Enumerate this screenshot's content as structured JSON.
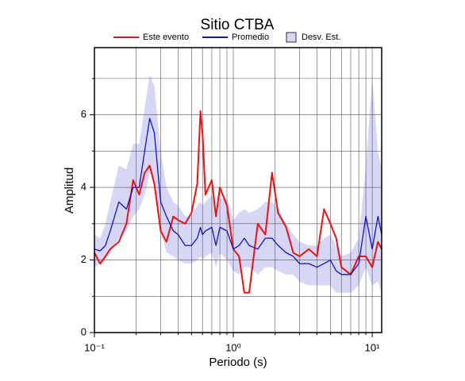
{
  "chart_data": {
    "type": "line",
    "title": "Sitio CTBA",
    "x_label": "Periodo (s)",
    "y_label": "Amplitud",
    "x_scale": "log",
    "grid": true,
    "xlim": [
      0.1,
      11.7
    ],
    "ylim": [
      0,
      7.85
    ],
    "xticks": [
      {
        "value": 0.1,
        "label": "10⁻¹"
      },
      {
        "value": 1,
        "label": "10⁰"
      },
      {
        "value": 10,
        "label": "10¹"
      }
    ],
    "x_minor_ticks": [
      0.2,
      0.3,
      0.4,
      0.5,
      0.6,
      0.7,
      0.8,
      0.9,
      2,
      3,
      4,
      5,
      6,
      7,
      8,
      9
    ],
    "yticks": [
      0,
      2,
      4,
      6
    ],
    "y_minor_ticks": [
      1,
      3,
      5,
      7
    ],
    "x": [
      0.1,
      0.11,
      0.12,
      0.13,
      0.15,
      0.17,
      0.19,
      0.21,
      0.23,
      0.25,
      0.27,
      0.3,
      0.33,
      0.37,
      0.4,
      0.45,
      0.5,
      0.55,
      0.58,
      0.6,
      0.63,
      0.7,
      0.75,
      0.8,
      0.9,
      1.0,
      1.1,
      1.2,
      1.3,
      1.5,
      1.7,
      1.9,
      2.1,
      2.4,
      2.7,
      3.0,
      3.5,
      4.0,
      4.5,
      5.0,
      5.5,
      6.0,
      7.0,
      8.0,
      9.0,
      10,
      11,
      11.7
    ],
    "series": [
      {
        "name": "Este evento",
        "color": "#ee1111",
        "values": [
          2.2,
          1.9,
          2.1,
          2.3,
          2.5,
          3.0,
          4.2,
          3.8,
          4.4,
          4.6,
          4.1,
          2.8,
          2.5,
          3.2,
          3.1,
          3.0,
          3.3,
          4.1,
          6.1,
          5.5,
          3.8,
          4.2,
          3.2,
          4.0,
          3.5,
          2.3,
          2.1,
          1.1,
          1.1,
          3.0,
          2.7,
          4.4,
          3.3,
          2.9,
          2.2,
          2.1,
          2.3,
          2.1,
          3.4,
          3.0,
          2.6,
          1.8,
          1.6,
          2.1,
          2.1,
          1.8,
          2.5,
          2.3
        ]
      },
      {
        "name": "Promedio",
        "color": "#1111cc",
        "values": [
          2.3,
          2.25,
          2.4,
          2.8,
          3.6,
          3.4,
          4.0,
          4.0,
          5.0,
          5.9,
          5.5,
          3.6,
          3.2,
          2.8,
          2.7,
          2.4,
          2.4,
          2.6,
          2.9,
          2.7,
          2.8,
          2.9,
          2.4,
          2.9,
          2.8,
          2.3,
          2.4,
          2.6,
          2.4,
          2.3,
          2.6,
          2.6,
          2.4,
          2.2,
          2.1,
          1.9,
          1.9,
          1.8,
          1.9,
          2.0,
          1.7,
          1.6,
          1.6,
          1.9,
          3.2,
          2.3,
          3.2,
          2.7
        ]
      }
    ],
    "band": {
      "name": "Desv. Est.",
      "color": "#d6d6f6",
      "lower": [
        1.8,
        1.9,
        2.0,
        2.2,
        2.6,
        2.8,
        3.2,
        3.4,
        3.8,
        4.4,
        4.2,
        2.8,
        2.2,
        2.1,
        2.0,
        1.9,
        1.9,
        2.0,
        2.1,
        2.0,
        2.1,
        2.2,
        1.8,
        2.2,
        2.0,
        1.7,
        1.6,
        1.8,
        1.8,
        1.6,
        1.8,
        1.8,
        1.7,
        1.6,
        1.6,
        1.4,
        1.3,
        1.3,
        1.3,
        1.3,
        1.1,
        1.1,
        1.1,
        1.3,
        1.8,
        1.3,
        1.4,
        1.1
      ],
      "upper": [
        2.7,
        2.6,
        3.0,
        3.6,
        4.6,
        4.5,
        5.2,
        5.2,
        6.2,
        7.1,
        6.8,
        5.0,
        4.0,
        3.6,
        3.5,
        3.2,
        3.2,
        3.5,
        3.6,
        3.5,
        3.6,
        3.8,
        3.4,
        3.7,
        3.7,
        3.1,
        3.3,
        3.4,
        3.3,
        3.4,
        3.6,
        3.6,
        3.4,
        3.0,
        2.7,
        2.5,
        2.4,
        2.4,
        2.6,
        2.7,
        2.4,
        2.1,
        2.2,
        2.6,
        4.6,
        7.0,
        5.0,
        4.5
      ]
    }
  }
}
